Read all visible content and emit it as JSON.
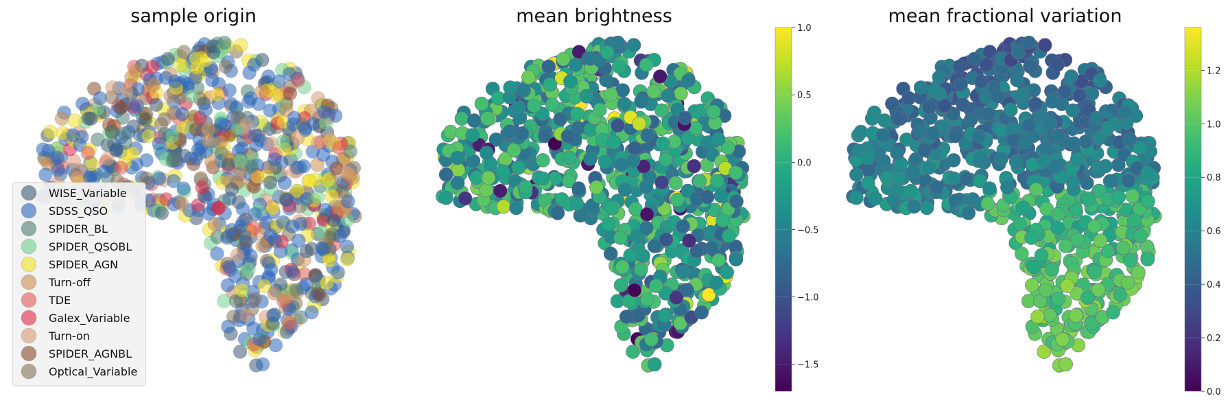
{
  "chart_data": [
    {
      "type": "scatter",
      "title": "sample origin",
      "legend_position": "lower-left",
      "legend": [
        {
          "name": "WISE_Variable",
          "color": "#3d5a73"
        },
        {
          "name": "SDSS_QSO",
          "color": "#2c67bd"
        },
        {
          "name": "SPIDER_BL",
          "color": "#4f7d74"
        },
        {
          "name": "SPIDER_QSOBL",
          "color": "#6fd18e"
        },
        {
          "name": "SPIDER_AGN",
          "color": "#f4e021"
        },
        {
          "name": "Turn-off",
          "color": "#c98e52"
        },
        {
          "name": "TDE",
          "color": "#e15b55"
        },
        {
          "name": "Galex_Variable",
          "color": "#dd2845"
        },
        {
          "name": "Turn-on",
          "color": "#d89a73"
        },
        {
          "name": "SPIDER_AGNBL",
          "color": "#8b4b2c"
        },
        {
          "name": "Optical_Variable",
          "color": "#857359"
        }
      ],
      "grid": false,
      "axes_visible": false
    },
    {
      "type": "scatter",
      "title": "mean brightness",
      "colormap": "viridis",
      "colorbar": {
        "range": [
          -1.7,
          1.0
        ],
        "ticks": [
          1.0,
          0.5,
          0.0,
          -0.5,
          -1.0,
          -1.5
        ],
        "tick_labels": [
          "1.0",
          "0.5",
          "0.0",
          "−0.5",
          "−1.0",
          "−1.5"
        ]
      },
      "grid": false,
      "axes_visible": false
    },
    {
      "type": "scatter",
      "title": "mean fractional variation",
      "colormap": "viridis",
      "colorbar": {
        "range": [
          0.0,
          1.36
        ],
        "ticks": [
          1.2,
          1.0,
          0.8,
          0.6,
          0.4,
          0.2,
          0.0
        ],
        "tick_labels": [
          "1.2",
          "1.0",
          "0.8",
          "0.6",
          "0.4",
          "0.2",
          "0.0"
        ]
      },
      "grid": false,
      "axes_visible": false
    }
  ]
}
